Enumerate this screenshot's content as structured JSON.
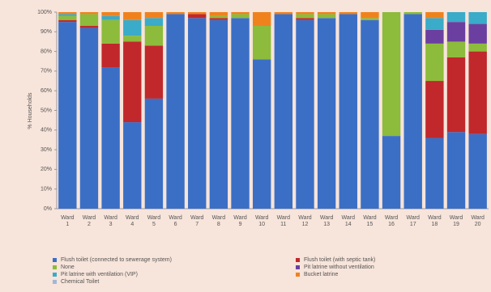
{
  "chart_data": {
    "type": "stacked_bar",
    "y_label": "% Households",
    "categories": [
      "Ward 1",
      "Ward 2",
      "Ward 3",
      "Ward 4",
      "Ward 5",
      "Ward 6",
      "Ward 7",
      "Ward 8",
      "Ward 9",
      "Ward 10",
      "Ward 11",
      "Ward 12",
      "Ward 13",
      "Ward 14",
      "Ward 15",
      "Ward 16",
      "Ward 17",
      "Ward 18",
      "Ward 19",
      "Ward 20"
    ],
    "series": [
      {
        "name": "Flush toilet (connected to sewerage system)",
        "color": "#3b6fc6",
        "values": [
          95,
          92,
          72,
          44,
          56,
          99,
          97,
          96,
          97,
          76,
          99,
          96,
          97,
          99,
          96,
          37,
          99,
          36,
          39,
          38
        ]
      },
      {
        "name": "Flush toilet (with septic tank)",
        "color": "#c0282c",
        "values": [
          1,
          1,
          12,
          41,
          27,
          0,
          2,
          1,
          0,
          0,
          0,
          1,
          0,
          0,
          0,
          0,
          0,
          29,
          38,
          42
        ]
      },
      {
        "name": "None",
        "color": "#8dbb3c",
        "values": [
          2,
          6,
          12,
          3,
          10,
          0,
          0,
          1,
          2,
          17,
          0,
          2,
          2,
          0,
          1,
          63,
          1,
          19,
          8,
          4
        ]
      },
      {
        "name": "Pit latrine without ventilation",
        "color": "#6b3fa0",
        "values": [
          0,
          0,
          0,
          0,
          0,
          0,
          0,
          0,
          0,
          0,
          0,
          0,
          0,
          0,
          0,
          0,
          0,
          7,
          10,
          10
        ]
      },
      {
        "name": "Pit latrine with ventilation (VIP)",
        "color": "#3aabc8",
        "values": [
          1,
          0,
          2,
          8,
          4,
          0,
          0,
          0,
          0,
          0,
          0,
          0,
          0,
          0,
          0,
          0,
          0,
          6,
          5,
          6
        ]
      },
      {
        "name": "Bucket latrine",
        "color": "#f0821e",
        "values": [
          1,
          1,
          2,
          4,
          3,
          1,
          1,
          2,
          1,
          7,
          1,
          1,
          1,
          1,
          3,
          0,
          0,
          3,
          0,
          0
        ]
      },
      {
        "name": "Chemical Toilet",
        "color": "#9fb8d8",
        "values": [
          0,
          0,
          0,
          0,
          0,
          0,
          0,
          0,
          0,
          0,
          0,
          0,
          0,
          0,
          0,
          0,
          0,
          0,
          0,
          0
        ]
      }
    ],
    "ylim": [
      0,
      100
    ],
    "yticks": [
      {
        "value": 0,
        "label": "0%"
      },
      {
        "value": 10,
        "label": "10%"
      },
      {
        "value": 20,
        "label": "20%"
      },
      {
        "value": 30,
        "label": "30%"
      },
      {
        "value": 40,
        "label": "40%"
      },
      {
        "value": 50,
        "label": "50%"
      },
      {
        "value": 60,
        "label": "60%"
      },
      {
        "value": 70,
        "label": "70%"
      },
      {
        "value": 80,
        "label": "80%"
      },
      {
        "value": 90,
        "label": "90%"
      },
      {
        "value": 100,
        "label": "100%"
      }
    ],
    "grid": false
  }
}
